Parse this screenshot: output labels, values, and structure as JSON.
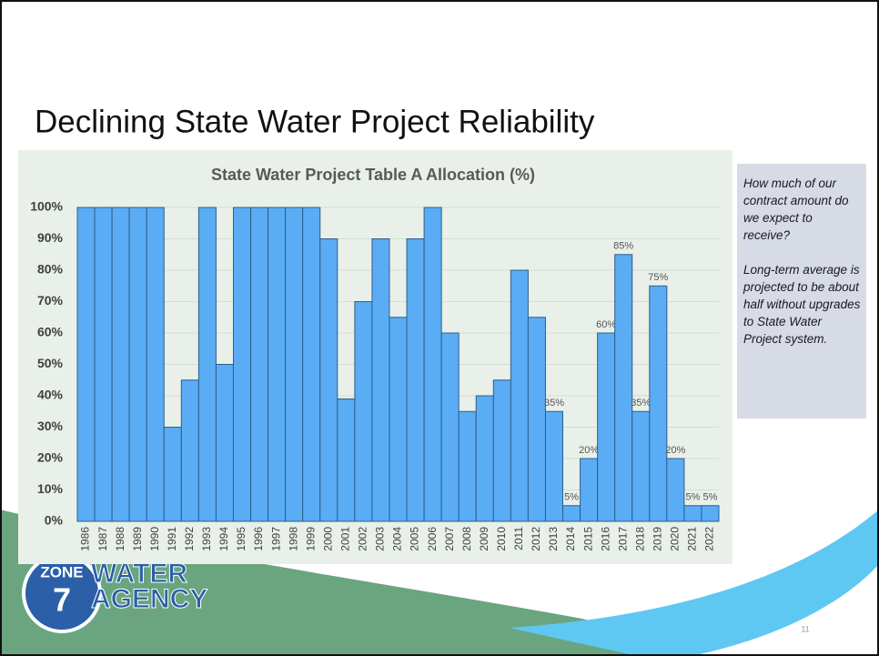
{
  "slide_title": "Declining State Water Project Reliability",
  "note": [
    "How much of our contract amount do we expect to receive?",
    "Long-term average is projected to be about half without upgrades to State Water Project system."
  ],
  "logo": {
    "badge": "ZONE",
    "number": "7",
    "name": [
      "WATER",
      "AGENCY"
    ]
  },
  "page_number": "11",
  "chart_data": {
    "type": "bar",
    "title": "State Water Project Table A Allocation (%)",
    "categories": [
      "1986",
      "1987",
      "1988",
      "1989",
      "1990",
      "1991",
      "1992",
      "1993",
      "1994",
      "1995",
      "1996",
      "1997",
      "1998",
      "1999",
      "2000",
      "2001",
      "2002",
      "2003",
      "2004",
      "2005",
      "2006",
      "2007",
      "2008",
      "2009",
      "2010",
      "2011",
      "2012",
      "2013",
      "2014",
      "2015",
      "2016",
      "2017",
      "2018",
      "2019",
      "2020",
      "2021",
      "2022"
    ],
    "values": [
      100,
      100,
      100,
      100,
      100,
      30,
      45,
      100,
      50,
      100,
      100,
      100,
      100,
      100,
      90,
      39,
      70,
      90,
      65,
      90,
      100,
      60,
      35,
      40,
      45,
      80,
      65,
      35,
      5,
      20,
      60,
      85,
      35,
      75,
      20,
      5,
      5
    ],
    "value_labels": [
      null,
      null,
      null,
      null,
      null,
      null,
      null,
      null,
      null,
      null,
      null,
      null,
      null,
      null,
      null,
      null,
      null,
      null,
      null,
      null,
      null,
      null,
      null,
      null,
      null,
      null,
      null,
      "35%",
      "5%",
      "20%",
      "60%",
      "85%",
      "35%",
      "75%",
      "20%",
      "5%",
      "5%"
    ],
    "color": "#5aacf4",
    "ylim": [
      0,
      100
    ],
    "yticks": [
      {
        "value": 0,
        "label": "0%"
      },
      {
        "value": 10,
        "label": "10%"
      },
      {
        "value": 20,
        "label": "20%"
      },
      {
        "value": 30,
        "label": "30%"
      },
      {
        "value": 40,
        "label": "40%"
      },
      {
        "value": 50,
        "label": "50%"
      },
      {
        "value": 60,
        "label": "60%"
      },
      {
        "value": 70,
        "label": "70%"
      },
      {
        "value": 80,
        "label": "80%"
      },
      {
        "value": 90,
        "label": "90%"
      },
      {
        "value": 100,
        "label": "100%"
      }
    ],
    "grid": true
  }
}
